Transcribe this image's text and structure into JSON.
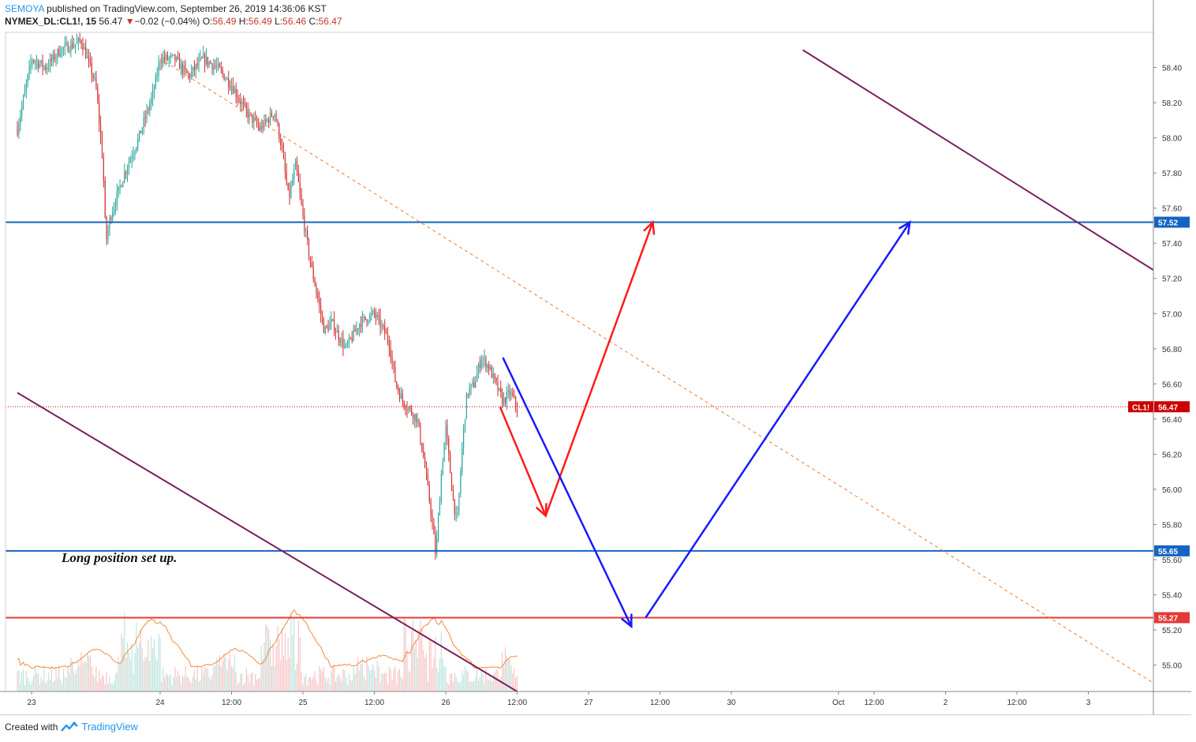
{
  "header": {
    "author": "SEMOYA",
    "published": "published on TradingView.com, September 26, 2019 14:36:06 KST",
    "symbol": "NYMEX_DL:CL1!, 15",
    "last": "56.47",
    "change_arrow": "▼",
    "change": "−0.02 (−0.04%)",
    "o_label": "O:",
    "o": "56.49",
    "h_label": "H:",
    "h": "56.49",
    "l_label": "L:",
    "l": "56.46",
    "c_label": "C:",
    "c": "56.47"
  },
  "footer": {
    "created_with": "Created with",
    "brand": "TradingView",
    "logo_icon": "tradingview-logo-icon"
  },
  "chart_data": {
    "type": "line",
    "symbol": "CL1!",
    "ylim": [
      54.85,
      58.6
    ],
    "y_ticks": [
      "58.40",
      "58.20",
      "58.00",
      "57.80",
      "57.60",
      "57.40",
      "57.20",
      "57.00",
      "56.80",
      "56.60",
      "56.40",
      "56.20",
      "56.00",
      "55.80",
      "55.60",
      "55.40",
      "55.20",
      "55.00"
    ],
    "x_ticks": [
      {
        "label": "23",
        "t": 0.1
      },
      {
        "label": "24",
        "t": 1.0
      },
      {
        "label": "12:00",
        "t": 1.5
      },
      {
        "label": "25",
        "t": 2.0
      },
      {
        "label": "12:00",
        "t": 2.5
      },
      {
        "label": "26",
        "t": 3.0
      },
      {
        "label": "12:00",
        "t": 3.5
      },
      {
        "label": "27",
        "t": 4.0
      },
      {
        "label": "12:00",
        "t": 4.5
      },
      {
        "label": "30",
        "t": 5.0
      },
      {
        "label": "Oct",
        "t": 5.75
      },
      {
        "label": "12:00",
        "t": 6.0
      },
      {
        "label": "2",
        "t": 6.5
      },
      {
        "label": "12:00",
        "t": 7.0
      },
      {
        "label": "3",
        "t": 7.5
      }
    ],
    "price_path": [
      [
        0.0,
        58.05
      ],
      [
        0.1,
        58.45
      ],
      [
        0.2,
        58.4
      ],
      [
        0.3,
        58.5
      ],
      [
        0.45,
        58.55
      ],
      [
        0.55,
        58.3
      ],
      [
        0.6,
        57.85
      ],
      [
        0.62,
        57.4
      ],
      [
        0.65,
        57.55
      ],
      [
        0.75,
        57.8
      ],
      [
        0.85,
        58.0
      ],
      [
        0.95,
        58.25
      ],
      [
        1.0,
        58.45
      ],
      [
        1.1,
        58.45
      ],
      [
        1.2,
        58.35
      ],
      [
        1.3,
        58.45
      ],
      [
        1.4,
        58.4
      ],
      [
        1.5,
        58.3
      ],
      [
        1.6,
        58.15
      ],
      [
        1.7,
        58.05
      ],
      [
        1.8,
        58.15
      ],
      [
        1.85,
        57.95
      ],
      [
        1.9,
        57.65
      ],
      [
        1.95,
        57.85
      ],
      [
        2.0,
        57.55
      ],
      [
        2.05,
        57.3
      ],
      [
        2.1,
        57.1
      ],
      [
        2.15,
        56.9
      ],
      [
        2.2,
        56.95
      ],
      [
        2.3,
        56.8
      ],
      [
        2.4,
        56.95
      ],
      [
        2.5,
        57.0
      ],
      [
        2.6,
        56.85
      ],
      [
        2.65,
        56.6
      ],
      [
        2.7,
        56.5
      ],
      [
        2.8,
        56.4
      ],
      [
        2.85,
        56.15
      ],
      [
        2.9,
        55.85
      ],
      [
        2.93,
        55.62
      ],
      [
        2.97,
        56.1
      ],
      [
        3.0,
        56.35
      ],
      [
        3.05,
        55.95
      ],
      [
        3.08,
        55.8
      ],
      [
        3.12,
        56.3
      ],
      [
        3.15,
        56.55
      ],
      [
        3.2,
        56.6
      ],
      [
        3.25,
        56.75
      ],
      [
        3.3,
        56.7
      ],
      [
        3.35,
        56.6
      ],
      [
        3.4,
        56.5
      ],
      [
        3.45,
        56.55
      ],
      [
        3.5,
        56.47
      ]
    ],
    "levels": [
      {
        "label": "57.52",
        "value": 57.52,
        "color": "#1565c0"
      },
      {
        "label": "55.65",
        "value": 55.65,
        "color": "#1565c0"
      },
      {
        "label": "55.27",
        "value": 55.27,
        "color": "#e53935"
      }
    ],
    "last_price": {
      "symbol_label": "CL1!",
      "label": "56.47",
      "value": 56.47,
      "color": "#cc0000"
    },
    "channel_lines": [
      {
        "points": [
          [
            0.0,
            56.55
          ],
          [
            3.5,
            54.85
          ]
        ],
        "color": "#7b1f5e",
        "style": "solid"
      },
      {
        "points": [
          [
            5.5,
            58.5
          ],
          [
            8.05,
            57.2
          ]
        ],
        "color": "#7b1f5e",
        "style": "solid"
      },
      {
        "points": [
          [
            1.0,
            58.45
          ],
          [
            8.05,
            54.85
          ]
        ],
        "color": "#f07a2e",
        "style": "dashed"
      }
    ],
    "projection_arrows": [
      {
        "points": [
          [
            3.38,
            56.47
          ],
          [
            3.7,
            55.85
          ]
        ],
        "color": "#ff1a1a"
      },
      {
        "points": [
          [
            3.7,
            55.85
          ],
          [
            4.45,
            57.52
          ]
        ],
        "color": "#ff1a1a"
      },
      {
        "points": [
          [
            3.4,
            56.75
          ],
          [
            4.3,
            55.22
          ]
        ],
        "color": "#1a1aff"
      },
      {
        "points": [
          [
            4.4,
            55.27
          ],
          [
            6.25,
            57.52
          ]
        ],
        "color": "#1a1aff"
      }
    ],
    "annotation": "Long position set up."
  }
}
